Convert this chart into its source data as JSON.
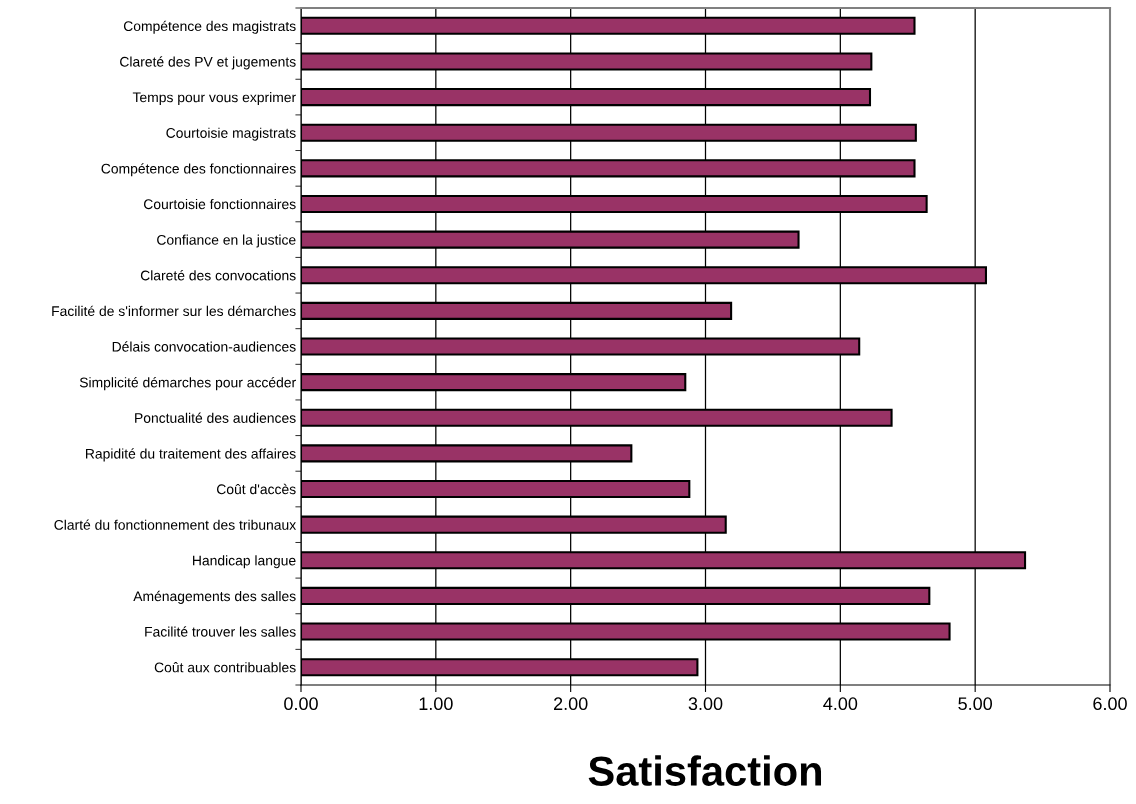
{
  "chart_data": {
    "type": "bar",
    "orientation": "horizontal",
    "xlabel": "Satisfaction",
    "categories": [
      "Compétence des magistrats",
      "Clareté des PV et jugements",
      "Temps pour vous exprimer",
      "Courtoisie magistrats",
      "Compétence des fonctionnaires",
      "Courtoisie fonctionnaires",
      "Confiance en la justice",
      "Clareté des convocations",
      "Facilité de s'informer sur les démarches",
      "Délais convocation-audiences",
      "Simplicité démarches pour accéder",
      "Ponctualité des audiences",
      "Rapidité du traitement des affaires",
      "Coût d'accès",
      "Clarté du fonctionnement des tribunaux",
      "Handicap langue",
      "Aménagements des salles",
      "Facilité trouver les salles",
      "Coût aux contribuables"
    ],
    "values": [
      4.55,
      4.23,
      4.22,
      4.56,
      4.55,
      4.64,
      3.69,
      5.08,
      3.19,
      4.14,
      2.85,
      4.38,
      2.45,
      2.88,
      3.15,
      5.37,
      4.66,
      4.81,
      2.94
    ],
    "color": "#993366",
    "xlim": [
      0,
      6
    ],
    "xticks": [
      {
        "value": 0,
        "label": "0.00"
      },
      {
        "value": 1,
        "label": "1.00"
      },
      {
        "value": 2,
        "label": "2.00"
      },
      {
        "value": 3,
        "label": "3.00"
      },
      {
        "value": 4,
        "label": "4.00"
      },
      {
        "value": 5,
        "label": "5.00"
      },
      {
        "value": 6,
        "label": "6.00"
      }
    ],
    "grid": "x",
    "legend": false
  }
}
